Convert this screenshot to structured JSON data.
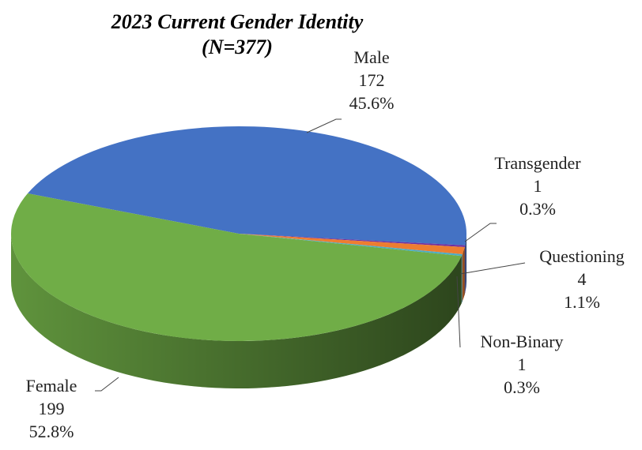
{
  "chart_data": {
    "type": "pie3d",
    "title": "2023 Current Gender Identity",
    "subtitle": "(N=377)",
    "categories": [
      "Male",
      "Transgender",
      "Questioning",
      "Non-Binary",
      "Female"
    ],
    "values": [
      172,
      1,
      4,
      1,
      199
    ],
    "percentages": [
      45.6,
      0.3,
      1.1,
      0.3,
      52.8
    ],
    "percentage_labels": [
      "45.6%",
      "0.3%",
      "1.1%",
      "0.3%",
      "52.8%"
    ],
    "colors": [
      "#4472c4",
      "#7030a0",
      "#ed7d31",
      "#4bacc6",
      "#70ad47"
    ]
  }
}
